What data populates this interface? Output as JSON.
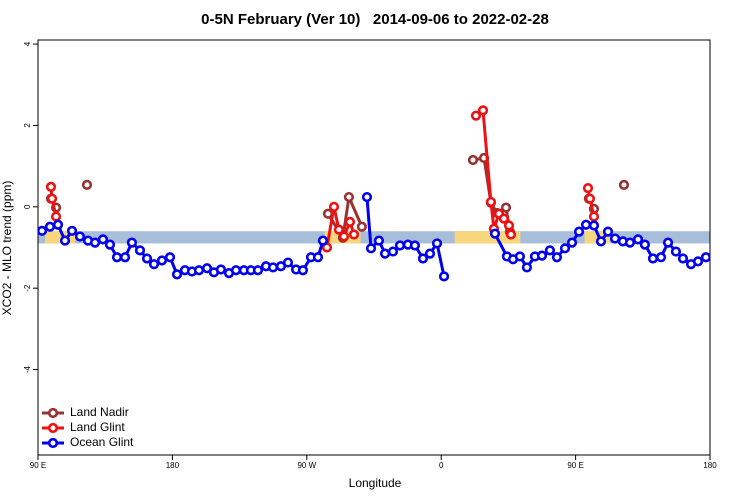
{
  "chart_data": {
    "type": "line",
    "title": "0-5N February (Ver 10)   2014-09-06 to 2022-02-28",
    "xlabel": "Longitude",
    "ylabel": "XCO2 - MLO trend (ppm)",
    "xlim": [
      90,
      540
    ],
    "ylim": [
      -6.1,
      4.1
    ],
    "xticks": [
      {
        "value": 90,
        "label": "90 E"
      },
      180,
      {
        "value": 270,
        "label": "90 W"
      },
      {
        "value": 360,
        "label": "0"
      },
      {
        "value": 450,
        "label": "90 E"
      },
      {
        "value": 540,
        "label": "180"
      }
    ],
    "yticks": [
      -4,
      -2,
      0,
      2,
      4
    ],
    "legend": "bottom-left",
    "band": {
      "ymin": -0.9,
      "ymax": -0.6,
      "color": "#a7bdd9",
      "land_color": "#f7d67e",
      "land_segments": [
        [
          94.7,
          114.8
        ],
        [
          282,
          306
        ],
        [
          369,
          413
        ],
        [
          456,
          473
        ]
      ]
    },
    "series": [
      {
        "name": "Land Nadir",
        "color": "#993333",
        "x": [
          98.7,
          102.1,
          null,
          122.8,
          null,
          284.2,
          294.2,
          298.2,
          306.9,
          null,
          381.3,
          388.7,
          393.3,
          397.3,
          403.4,
          406.0,
          null,
          458.9,
          462.3,
          null,
          482.4
        ],
        "values": [
          0.2,
          -0.02,
          null,
          0.54,
          null,
          -0.17,
          -0.76,
          0.24,
          -0.49,
          null,
          1.15,
          1.2,
          0.1,
          -0.15,
          -0.02,
          -0.61,
          null,
          0.2,
          -0.05,
          null,
          0.54
        ]
      },
      {
        "name": "Land Glint",
        "color": "#ee1111",
        "x": [
          98.7,
          99.4,
          102.1,
          null,
          283.5,
          288.2,
          291.5,
          294.9,
          298.9,
          301.6,
          null,
          383.3,
          388.0,
          393.3,
          395.3,
          398.7,
          402.0,
          405.4,
          406.7,
          null,
          458.3,
          459.6,
          462.3
        ],
        "values": [
          0.49,
          0.2,
          -0.24,
          null,
          -1.0,
          0.0,
          -0.56,
          -0.73,
          -0.37,
          -0.68,
          null,
          2.24,
          2.37,
          0.12,
          -0.54,
          -0.17,
          -0.29,
          -0.46,
          -0.68,
          null,
          0.46,
          0.2,
          -0.24
        ]
      },
      {
        "name": "Ocean Glint",
        "color": "#0000ee",
        "x": [
          92.7,
          98.0,
          103.4,
          108.1,
          112.8,
          118.1,
          123.5,
          128.2,
          133.5,
          138.2,
          142.9,
          148.3,
          152.9,
          158.3,
          163.0,
          167.7,
          173.0,
          178.4,
          183.1,
          188.4,
          193.1,
          197.8,
          203.2,
          207.8,
          212.5,
          217.9,
          222.6,
          227.9,
          232.6,
          237.3,
          242.7,
          247.4,
          252.7,
          257.4,
          262.8,
          267.4,
          272.8,
          277.5,
          280.8,
          null,
          310.3,
          313.0,
          318.3,
          322.4,
          327.7,
          332.4,
          337.7,
          342.4,
          347.8,
          352.5,
          357.2,
          361.9,
          null,
          396.0,
          404.0,
          408.1,
          412.7,
          417.4,
          422.8,
          427.5,
          432.8,
          437.5,
          442.9,
          447.6,
          452.3,
          457.0,
          462.3,
          467.0,
          471.7,
          476.4,
          481.7,
          486.4,
          491.8,
          496.4,
          501.8,
          507.2,
          511.9,
          517.2,
          521.9,
          527.3,
          532.0,
          537.3
        ],
        "values": [
          -0.59,
          -0.49,
          -0.44,
          -0.83,
          -0.59,
          -0.73,
          -0.83,
          -0.88,
          -0.8,
          -0.93,
          -1.24,
          -1.24,
          -0.88,
          -1.07,
          -1.27,
          -1.41,
          -1.32,
          -1.24,
          -1.66,
          -1.56,
          -1.59,
          -1.56,
          -1.51,
          -1.61,
          -1.54,
          -1.63,
          -1.56,
          -1.56,
          -1.56,
          -1.56,
          -1.46,
          -1.49,
          -1.46,
          -1.37,
          -1.54,
          -1.56,
          -1.24,
          -1.24,
          -0.83,
          null,
          0.24,
          -1.02,
          -0.83,
          -1.15,
          -1.1,
          -0.95,
          -0.93,
          -0.95,
          -1.27,
          -1.15,
          -0.9,
          -1.71,
          null,
          -0.66,
          -1.22,
          -1.29,
          -1.22,
          -1.49,
          -1.22,
          -1.2,
          -1.07,
          -1.24,
          -1.02,
          -0.88,
          -0.61,
          -0.44,
          -0.46,
          -0.85,
          -0.61,
          -0.78,
          -0.85,
          -0.88,
          -0.8,
          -0.93,
          -1.27,
          -1.24,
          -0.88,
          -1.1,
          -1.27,
          -1.41,
          -1.34,
          -1.24
        ]
      }
    ]
  }
}
